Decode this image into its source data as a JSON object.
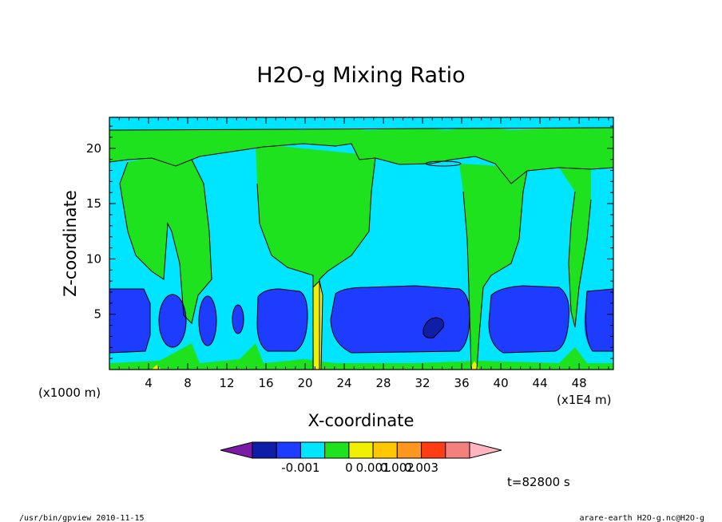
{
  "chart_data": {
    "type": "heatmap",
    "title": "H2O-g Mixing Ratio",
    "xlabel": "X-coordinate",
    "ylabel": "Z-coordinate",
    "x_unit_left": "(x1000 m)",
    "x_unit_right": "(x1E4 m)",
    "xlim": [
      0,
      51.5
    ],
    "ylim": [
      0,
      22.8
    ],
    "x_ticks": [
      4,
      8,
      12,
      16,
      20,
      24,
      28,
      32,
      36,
      40,
      44,
      48
    ],
    "y_ticks": [
      5,
      10,
      15,
      20
    ],
    "colorbar": {
      "colors": [
        "#7a1aa6",
        "#0f1ea6",
        "#1e3cff",
        "#00e5ff",
        "#1ee21e",
        "#f0f000",
        "#ffc800",
        "#ff961e",
        "#ff3c14",
        "#f4807e",
        "#ffb4c0"
      ],
      "tick_labels": [
        "-0.001",
        "0",
        "0.001",
        "0.002",
        "0.003"
      ]
    },
    "time_label": "t=82800 s"
  },
  "footer": {
    "left": "/usr/bin/gpview  2010-11-15",
    "right": "arare-earth_H2O-g.nc@H2O-g"
  }
}
